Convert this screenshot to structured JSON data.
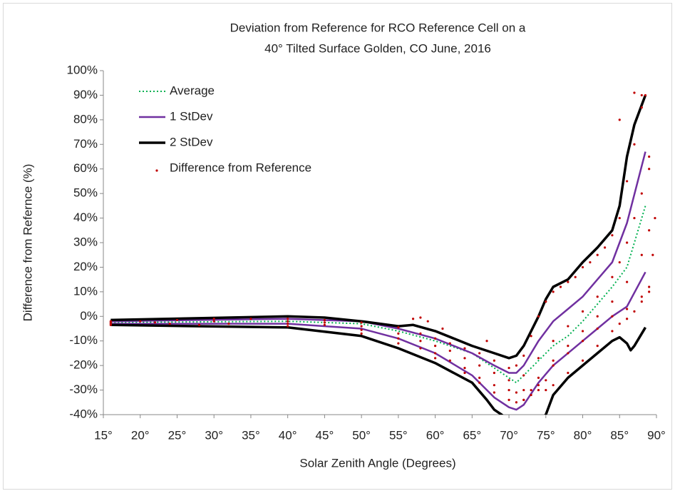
{
  "chart_data": {
    "type": "line",
    "title": [
      "Deviation from Reference for RCO Reference Cell on a",
      "40° Tilted Surface    Golden, CO  June, 2016"
    ],
    "xlabel": "Solar Zenith Angle (Degrees)",
    "ylabel": "Difference from Refernce (%)",
    "xlim": [
      15,
      90
    ],
    "ylim": [
      -40,
      100
    ],
    "grid": false,
    "legend": "top-left",
    "xticks": [
      {
        "value": 15,
        "label": "15°"
      },
      {
        "value": 20,
        "label": "20°"
      },
      {
        "value": 25,
        "label": "25°"
      },
      {
        "value": 30,
        "label": "30°"
      },
      {
        "value": 35,
        "label": "35°"
      },
      {
        "value": 40,
        "label": "40°"
      },
      {
        "value": 45,
        "label": "45°"
      },
      {
        "value": 50,
        "label": "50°"
      },
      {
        "value": 55,
        "label": "55°"
      },
      {
        "value": 60,
        "label": "60°"
      },
      {
        "value": 65,
        "label": "65°"
      },
      {
        "value": 70,
        "label": "70°"
      },
      {
        "value": 75,
        "label": "75°"
      },
      {
        "value": 80,
        "label": "80°"
      },
      {
        "value": 85,
        "label": "85°"
      },
      {
        "value": 90,
        "label": "90°"
      }
    ],
    "yticks": [
      {
        "value": -40,
        "label": "-40%"
      },
      {
        "value": -30,
        "label": "-30%"
      },
      {
        "value": -20,
        "label": "-20%"
      },
      {
        "value": -10,
        "label": "-10%"
      },
      {
        "value": 0,
        "label": "0%"
      },
      {
        "value": 10,
        "label": "10%"
      },
      {
        "value": 20,
        "label": "20%"
      },
      {
        "value": 30,
        "label": "30%"
      },
      {
        "value": 40,
        "label": "40%"
      },
      {
        "value": 50,
        "label": "50%"
      },
      {
        "value": 60,
        "label": "60%"
      },
      {
        "value": 70,
        "label": "70%"
      },
      {
        "value": 80,
        "label": "80%"
      },
      {
        "value": 90,
        "label": "90%"
      },
      {
        "value": 100,
        "label": "100%"
      }
    ],
    "series": [
      {
        "name": "Average",
        "kind": "line",
        "style": "dotted",
        "color": "#00b050",
        "width": 2,
        "x": [
          16,
          40,
          50,
          55,
          60,
          65,
          68,
          70,
          71,
          72,
          74,
          76,
          78,
          80,
          82,
          84,
          86,
          87,
          88.5
        ],
        "values": [
          -2.5,
          -2,
          -3,
          -6,
          -10,
          -15,
          -21,
          -25,
          -27,
          -24,
          -18,
          -12,
          -8,
          -2,
          5,
          12,
          20,
          30,
          45
        ]
      },
      {
        "name": "1 StDev",
        "kind": "line",
        "style": "solid",
        "color": "#7030a0",
        "width": 2.5,
        "x": [
          16,
          40,
          50,
          55,
          60,
          65,
          68,
          70,
          71,
          72,
          74,
          76,
          78,
          80,
          82,
          84,
          86,
          88.5
        ],
        "values": [
          -2,
          -1,
          -2,
          -5,
          -9,
          -15,
          -20,
          -23,
          -23,
          -20,
          -10,
          -2,
          3,
          8,
          15,
          22,
          38,
          67
        ]
      },
      {
        "kind": "line",
        "style": "solid",
        "color": "#7030a0",
        "width": 2.5,
        "x": [
          16,
          40,
          50,
          55,
          60,
          65,
          68,
          70,
          71,
          72,
          74,
          76,
          78,
          80,
          82,
          84,
          86,
          88.5
        ],
        "values": [
          -3,
          -3,
          -5,
          -9,
          -15,
          -24,
          -33,
          -37,
          -38,
          -36,
          -27,
          -20,
          -15,
          -10,
          -5,
          0,
          4,
          18
        ]
      },
      {
        "name": "2 StDev",
        "kind": "line",
        "style": "solid",
        "color": "#000000",
        "width": 3.5,
        "x": [
          16,
          40,
          45,
          50,
          55,
          57,
          60,
          65,
          68,
          70,
          71,
          72,
          74,
          75,
          76,
          78,
          80,
          82,
          84,
          85,
          86,
          87,
          88.5
        ],
        "values": [
          -1.5,
          0,
          -0.5,
          -2,
          -4,
          -3.5,
          -6,
          -12,
          -15,
          -17,
          -16,
          -12,
          0,
          7,
          12,
          15,
          22,
          28,
          35,
          45,
          65,
          78,
          90
        ]
      },
      {
        "kind": "line",
        "style": "solid",
        "color": "#000000",
        "width": 3.5,
        "x": [
          16,
          40,
          50,
          55,
          60,
          65,
          67,
          68,
          69,
          71,
          74,
          75,
          76,
          78,
          80,
          82,
          84,
          85,
          86,
          86.5,
          87,
          88.5
        ],
        "values": [
          -3.5,
          -4.5,
          -8,
          -13,
          -19,
          -27,
          -34,
          -38,
          -40,
          -45,
          -43,
          -40,
          -32,
          -25,
          -20,
          -15,
          -10,
          -8.5,
          -11,
          -13.8,
          -12,
          -4.5
        ]
      },
      {
        "name": "Difference from Reference",
        "kind": "scatter",
        "color": "#c00000",
        "x": [
          16,
          20,
          25,
          30,
          35,
          40,
          45,
          50,
          55,
          58,
          60,
          62,
          64,
          66,
          68,
          70,
          71,
          72,
          73,
          74,
          75,
          76,
          77,
          78,
          79,
          80,
          81,
          82,
          83,
          84,
          85,
          86,
          87,
          88,
          88.5,
          16,
          22,
          30,
          40,
          45,
          50,
          55,
          58,
          60,
          62,
          64,
          66,
          68,
          70,
          72,
          74,
          76,
          78,
          80,
          82,
          84,
          85,
          86,
          87,
          88,
          89,
          16,
          24,
          32,
          40,
          45,
          50,
          55,
          58,
          60,
          62,
          64,
          66,
          68,
          70,
          71,
          72,
          74,
          76,
          78,
          80,
          82,
          84,
          86,
          88,
          89,
          16,
          28,
          40,
          50,
          55,
          60,
          64,
          66,
          68,
          70,
          71,
          72,
          73,
          74,
          75,
          76,
          78,
          80,
          82,
          84,
          86,
          88,
          89,
          72,
          73,
          74,
          75,
          76,
          78,
          80,
          82,
          84,
          85,
          86,
          87,
          88,
          89,
          57,
          58,
          59,
          61,
          67,
          85,
          87,
          88,
          89,
          89.5,
          89.8
        ],
        "values": [
          -2,
          -2,
          -1.5,
          -1,
          -1,
          -1,
          -1.5,
          -2.5,
          -4.5,
          -7,
          -9,
          -11,
          -13,
          -15,
          -18,
          -21,
          -20,
          -16,
          -8,
          0,
          6,
          10,
          12,
          14,
          16,
          20,
          22,
          25,
          28,
          33,
          40,
          55,
          70,
          85,
          90,
          -2.5,
          -2.5,
          -2,
          -2,
          -2.5,
          -4,
          -7,
          -10,
          -12,
          -14,
          -17,
          -20,
          -23,
          -26,
          -24,
          -17,
          -10,
          -4,
          2,
          8,
          16,
          22,
          30,
          40,
          50,
          60,
          -3,
          -3,
          -3,
          -3,
          -3.5,
          -5.5,
          -9,
          -13,
          -15,
          -18,
          -21,
          -25,
          -28,
          -30,
          -31,
          -30,
          -25,
          -18,
          -12,
          -6,
          0,
          6,
          14,
          25,
          35,
          -3.5,
          -3.5,
          -4,
          -7,
          -11,
          -17,
          -23,
          -27,
          -31,
          -34,
          -35,
          -34,
          -30,
          -28,
          -26,
          -20,
          -15,
          -10,
          -5,
          0,
          3,
          8,
          12,
          -34,
          -32,
          -30,
          -30,
          -28,
          -23,
          -18,
          -12,
          -6,
          -3,
          -1,
          2,
          6,
          10,
          -1,
          -0.5,
          -2,
          -5,
          -10,
          80,
          91,
          90,
          65,
          25,
          40
        ]
      }
    ]
  }
}
